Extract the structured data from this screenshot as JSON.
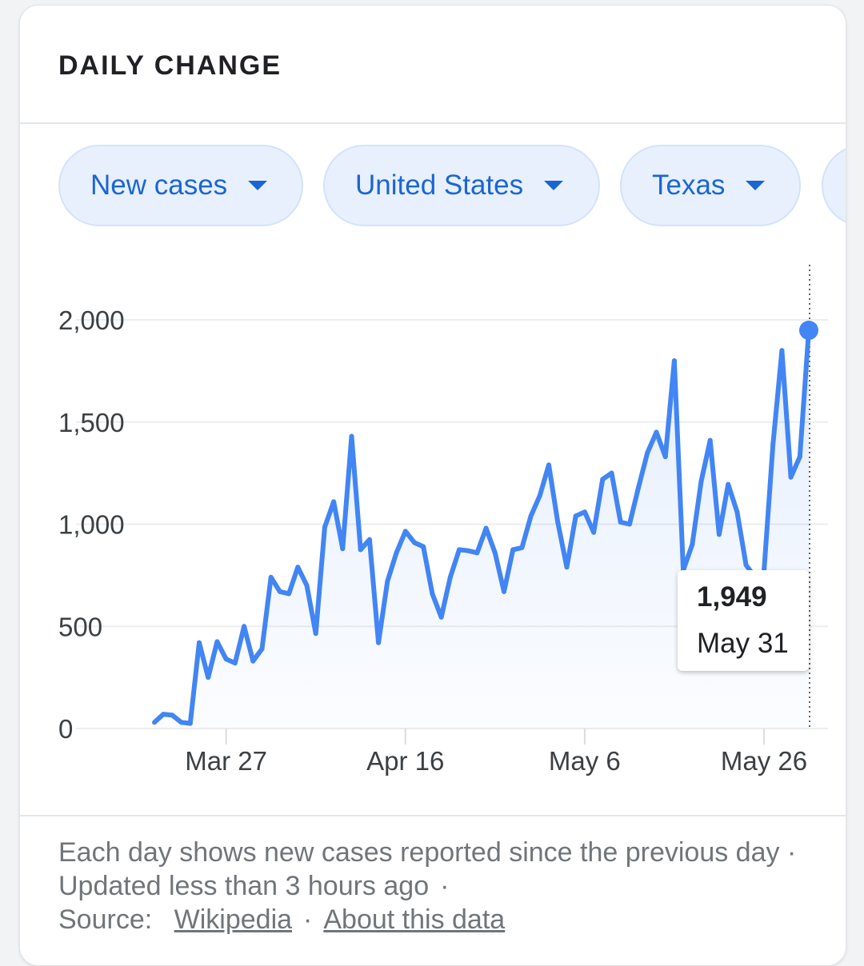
{
  "card": {
    "title": "DAILY CHANGE"
  },
  "filters": [
    {
      "label": "New cases",
      "icon": "caret-down-icon"
    },
    {
      "label": "United States",
      "icon": "caret-down-icon"
    },
    {
      "label": "Texas",
      "icon": "caret-down-icon"
    }
  ],
  "tooltip": {
    "value": "1,949",
    "date": "May 31"
  },
  "footer": {
    "description": "Each day shows new cases reported since the previous day · Updated less than 3 hours ago",
    "source_label": "Source:",
    "source_link": "Wikipedia",
    "about_link": "About this data"
  },
  "colors": {
    "line": "#4285f4",
    "chip_text": "#1a66d2",
    "chip_bg": "#e8f0fe"
  },
  "chart_data": {
    "type": "area",
    "title": "",
    "xlabel": "",
    "ylabel": "",
    "ylim": [
      0,
      2000
    ],
    "yticks": [
      0,
      500,
      1000,
      1500,
      2000
    ],
    "ytick_labels": [
      "0",
      "500",
      "1,000",
      "1,500",
      "2,000"
    ],
    "xticks": [
      "Mar 27",
      "Apr 16",
      "May 6",
      "May 26"
    ],
    "grid": true,
    "series": [
      {
        "x_start": "Mar 19",
        "x_end": "May 31",
        "values": [
          30,
          70,
          65,
          30,
          25,
          420,
          250,
          425,
          340,
          320,
          500,
          330,
          390,
          740,
          670,
          660,
          790,
          700,
          465,
          985,
          1110,
          880,
          1430,
          875,
          925,
          420,
          720,
          860,
          965,
          910,
          890,
          660,
          545,
          740,
          875,
          870,
          860,
          980,
          860,
          670,
          875,
          885,
          1040,
          1140,
          1290,
          1010,
          790,
          1040,
          1060,
          960,
          1220,
          1250,
          1010,
          1000,
          1180,
          1350,
          1450,
          1330,
          1800,
          775,
          900,
          1210,
          1410,
          950,
          1195,
          1060,
          800,
          740,
          770,
          1390,
          1850,
          1230,
          1330,
          1949
        ]
      }
    ],
    "highlight": {
      "x": "May 31",
      "value": 1949
    }
  }
}
